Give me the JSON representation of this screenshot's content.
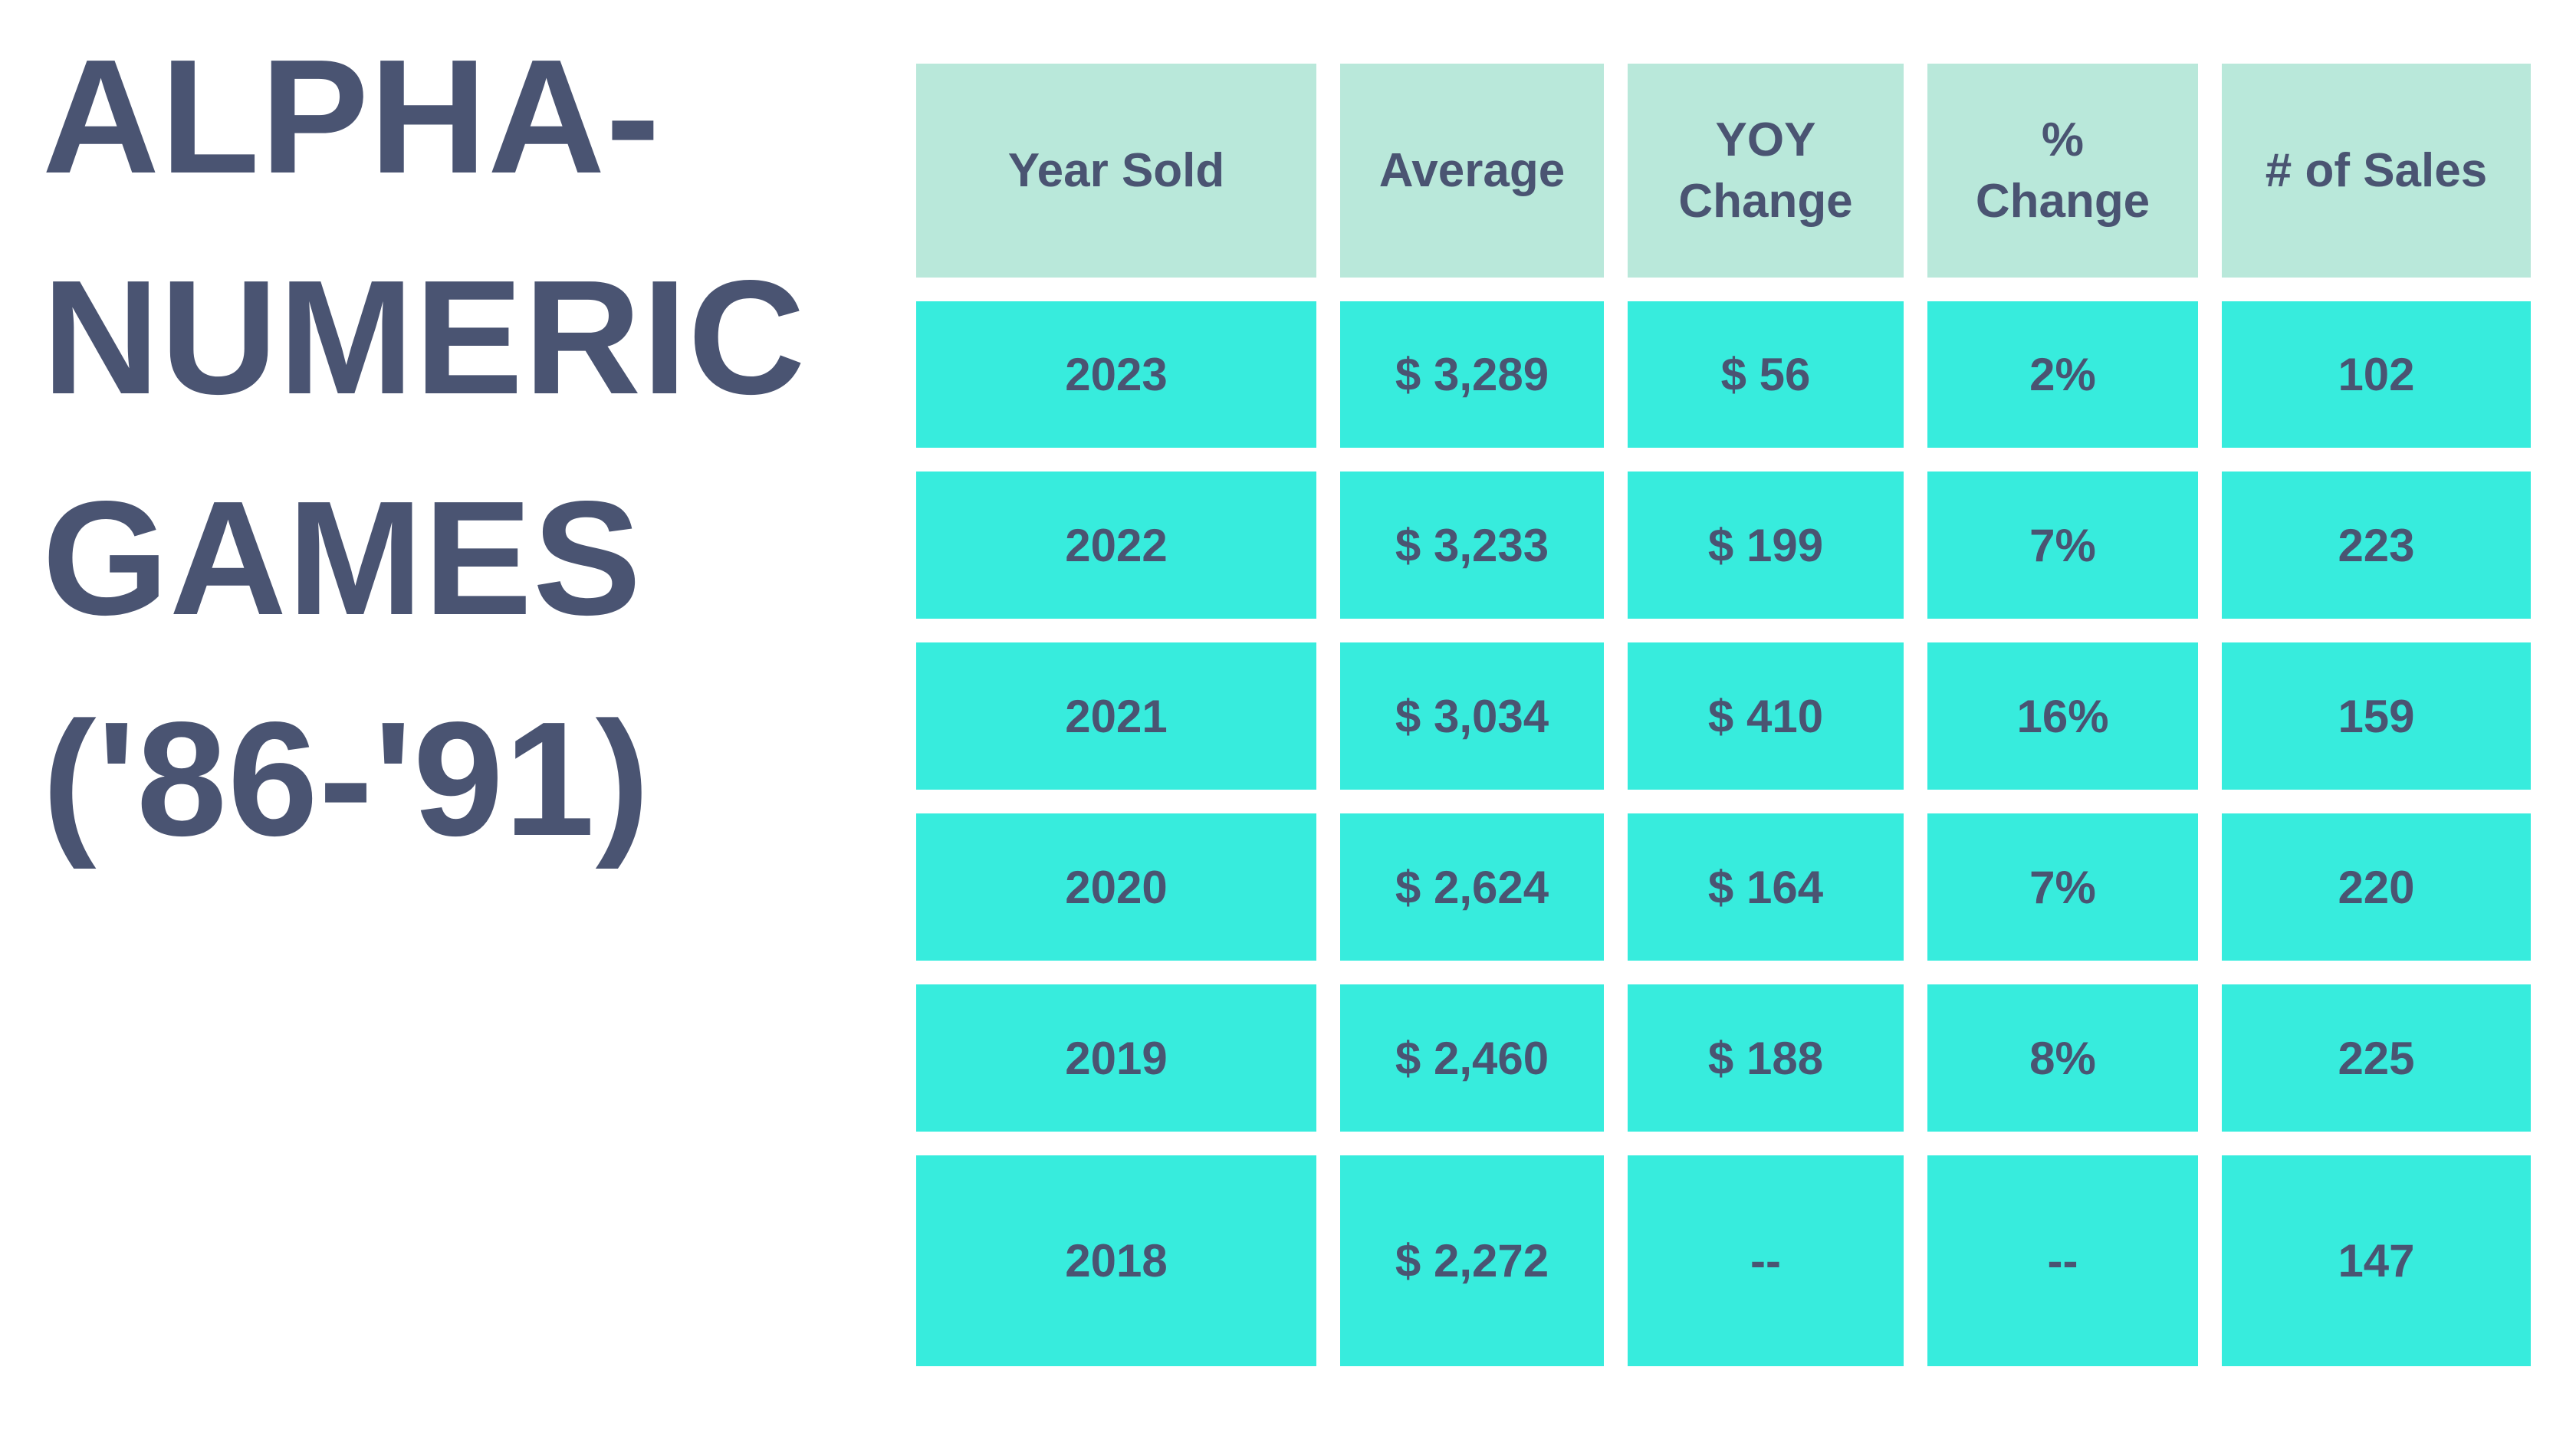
{
  "title": {
    "lines": [
      "ALPHA-",
      "NUMERIC",
      "GAMES",
      "('86-'91)"
    ],
    "color": "#4a5472"
  },
  "colors": {
    "background": "#ffffff",
    "header_cell": "#b9e8da",
    "data_cell": "#37ecdd",
    "text": "#4a5472"
  },
  "table": {
    "headers": [
      "Year Sold",
      "Average",
      "YOY\nChange",
      "%\nChange",
      "# of Sales"
    ],
    "rows": [
      [
        "2023",
        "$ 3,289",
        "$ 56",
        "2%",
        "102"
      ],
      [
        "2022",
        "$ 3,233",
        "$ 199",
        "7%",
        "223"
      ],
      [
        "2021",
        "$ 3,034",
        "$ 410",
        "16%",
        "159"
      ],
      [
        "2020",
        "$ 2,624",
        "$ 164",
        "7%",
        "220"
      ],
      [
        "2019",
        "$ 2,460",
        "$ 188",
        "8%",
        "225"
      ],
      [
        "2018",
        "$ 2,272",
        "--",
        "--",
        "147"
      ]
    ]
  },
  "chart_data": {
    "type": "table",
    "title": "ALPHA-NUMERIC GAMES ('86-'91)",
    "columns": [
      "Year Sold",
      "Average",
      "YOY Change",
      "% Change",
      "# of Sales"
    ],
    "rows": [
      {
        "year_sold": 2023,
        "average_usd": 3289,
        "yoy_change_usd": 56,
        "pct_change": "2%",
        "num_sales": 102
      },
      {
        "year_sold": 2022,
        "average_usd": 3233,
        "yoy_change_usd": 199,
        "pct_change": "7%",
        "num_sales": 223
      },
      {
        "year_sold": 2021,
        "average_usd": 3034,
        "yoy_change_usd": 410,
        "pct_change": "16%",
        "num_sales": 159
      },
      {
        "year_sold": 2020,
        "average_usd": 2624,
        "yoy_change_usd": 164,
        "pct_change": "7%",
        "num_sales": 220
      },
      {
        "year_sold": 2019,
        "average_usd": 2460,
        "yoy_change_usd": 188,
        "pct_change": "8%",
        "num_sales": 225
      },
      {
        "year_sold": 2018,
        "average_usd": 2272,
        "yoy_change_usd": "--",
        "pct_change": "--",
        "num_sales": 147
      }
    ]
  }
}
